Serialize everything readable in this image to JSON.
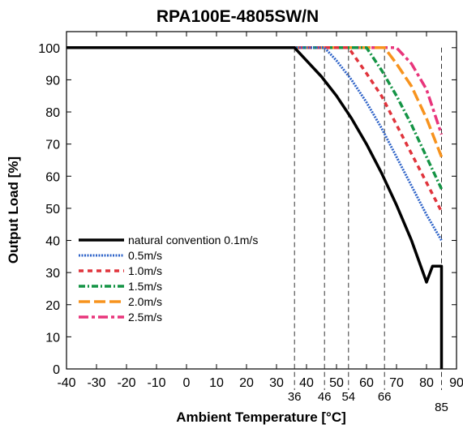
{
  "chart_data": {
    "type": "line",
    "title": "RPA100E-4805SW/N",
    "xlabel": "Ambient Temperature [°C]",
    "ylabel": "Output Load [%]",
    "xlim": [
      -40,
      90
    ],
    "ylim": [
      0,
      105
    ],
    "xticks": [
      -40,
      -30,
      -20,
      -10,
      0,
      10,
      20,
      30,
      40,
      50,
      60,
      70,
      80,
      90
    ],
    "yticks": [
      0,
      10,
      20,
      30,
      40,
      50,
      60,
      70,
      80,
      90,
      100
    ],
    "grid": "dashed vertical lines at derating knees",
    "legend_position": "lower-left",
    "annotations": [
      {
        "x": 36,
        "label": "36"
      },
      {
        "x": 46,
        "label": "46"
      },
      {
        "x": 54,
        "label": "54"
      },
      {
        "x": 66,
        "label": "66"
      },
      {
        "x": 85,
        "label": "85"
      }
    ],
    "series": [
      {
        "name": "natural convention 0.1m/s",
        "color": "#000000",
        "style": "solid",
        "points": [
          [
            -40,
            100
          ],
          [
            36,
            100
          ],
          [
            40,
            96
          ],
          [
            45,
            91
          ],
          [
            50,
            85
          ],
          [
            55,
            78
          ],
          [
            60,
            70
          ],
          [
            65,
            61
          ],
          [
            70,
            51
          ],
          [
            75,
            40
          ],
          [
            80,
            27
          ],
          [
            82,
            32
          ],
          [
            85,
            32
          ],
          [
            85,
            0
          ]
        ]
      },
      {
        "name": "0.5m/s",
        "color": "#2E63C8",
        "style": "dotted",
        "points": [
          [
            -40,
            100
          ],
          [
            46,
            100
          ],
          [
            50,
            96
          ],
          [
            55,
            90
          ],
          [
            60,
            83
          ],
          [
            65,
            75
          ],
          [
            70,
            66
          ],
          [
            75,
            57
          ],
          [
            80,
            48
          ],
          [
            85,
            40
          ]
        ]
      },
      {
        "name": "1.0m/s",
        "color": "#E0343C",
        "style": "dashed",
        "points": [
          [
            -40,
            100
          ],
          [
            54,
            100
          ],
          [
            60,
            92
          ],
          [
            65,
            85
          ],
          [
            70,
            76
          ],
          [
            75,
            67
          ],
          [
            80,
            58
          ],
          [
            85,
            49
          ]
        ]
      },
      {
        "name": "1.5m/s",
        "color": "#149445",
        "style": "dashdot",
        "points": [
          [
            -40,
            100
          ],
          [
            60,
            100
          ],
          [
            65,
            93
          ],
          [
            70,
            85
          ],
          [
            75,
            76
          ],
          [
            80,
            66
          ],
          [
            85,
            56
          ]
        ]
      },
      {
        "name": "2.0m/s",
        "color": "#F7931E",
        "style": "longdash",
        "points": [
          [
            -40,
            100
          ],
          [
            66,
            100
          ],
          [
            70,
            95
          ],
          [
            75,
            88
          ],
          [
            80,
            78
          ],
          [
            85,
            66
          ]
        ]
      },
      {
        "name": "2.5m/s",
        "color": "#E8357B",
        "style": "dashdot-long",
        "points": [
          [
            -40,
            100
          ],
          [
            70,
            100
          ],
          [
            75,
            95
          ],
          [
            80,
            87
          ],
          [
            85,
            73
          ]
        ]
      }
    ]
  }
}
